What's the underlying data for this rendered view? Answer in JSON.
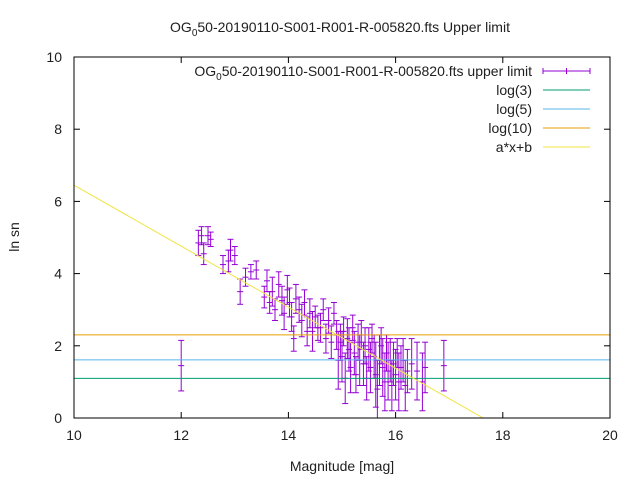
{
  "chart_data": {
    "type": "scatter",
    "title": "OG",
    "title_sub": "0",
    "title_rest": "50-20190110-S001-R001-R-005820.fts Upper limit",
    "xlabel": "Magnitude [mag]",
    "ylabel": "ln sn",
    "xlim": [
      10,
      20
    ],
    "ylim": [
      0,
      10
    ],
    "xticks": [
      10,
      12,
      14,
      16,
      18,
      20
    ],
    "yticks": [
      0,
      2,
      4,
      6,
      8,
      10
    ],
    "grid": false,
    "legend_position": "top-right",
    "series": [
      {
        "name": "OG",
        "name_sub": "0",
        "name_rest": "50-20190110-S001-R001-R-005820.fts upper limit",
        "kind": "errorbars",
        "color": "#9400d3",
        "points": [
          [
            12.0,
            1.45,
            0.7
          ],
          [
            12.32,
            4.85,
            0.35
          ],
          [
            12.38,
            5.05,
            0.25
          ],
          [
            12.42,
            4.55,
            0.3
          ],
          [
            12.5,
            5.05,
            0.25
          ],
          [
            12.55,
            4.95,
            0.2
          ],
          [
            12.78,
            4.25,
            0.25
          ],
          [
            12.88,
            4.35,
            0.3
          ],
          [
            12.92,
            4.65,
            0.3
          ],
          [
            13.0,
            4.5,
            0.25
          ],
          [
            13.1,
            3.5,
            0.35
          ],
          [
            13.2,
            3.9,
            0.25
          ],
          [
            13.3,
            4.05,
            0.2
          ],
          [
            13.4,
            4.1,
            0.25
          ],
          [
            13.55,
            3.35,
            0.3
          ],
          [
            13.6,
            3.8,
            0.3
          ],
          [
            13.65,
            3.2,
            0.3
          ],
          [
            13.7,
            3.5,
            0.4
          ],
          [
            13.75,
            3.0,
            0.3
          ],
          [
            13.82,
            3.7,
            0.35
          ],
          [
            13.88,
            3.25,
            0.4
          ],
          [
            13.92,
            2.9,
            0.45
          ],
          [
            13.98,
            3.55,
            0.4
          ],
          [
            14.02,
            3.2,
            0.4
          ],
          [
            14.06,
            2.8,
            0.4
          ],
          [
            14.1,
            2.2,
            0.35
          ],
          [
            14.14,
            3.3,
            0.4
          ],
          [
            14.2,
            3.0,
            0.35
          ],
          [
            14.25,
            2.7,
            0.45
          ],
          [
            14.3,
            3.2,
            0.35
          ],
          [
            14.35,
            2.4,
            0.4
          ],
          [
            14.4,
            2.9,
            0.4
          ],
          [
            14.45,
            2.4,
            0.55
          ],
          [
            14.5,
            2.8,
            0.3
          ],
          [
            14.55,
            2.5,
            0.35
          ],
          [
            14.6,
            2.5,
            0.4
          ],
          [
            14.65,
            3.0,
            0.3
          ],
          [
            14.7,
            2.2,
            0.4
          ],
          [
            14.75,
            2.7,
            0.35
          ],
          [
            14.8,
            2.1,
            0.45
          ],
          [
            14.85,
            2.9,
            0.3
          ],
          [
            14.9,
            2.3,
            0.4
          ],
          [
            14.93,
            1.6,
            0.8
          ],
          [
            14.97,
            2.1,
            0.5
          ],
          [
            15.0,
            1.7,
            0.7
          ],
          [
            15.03,
            2.4,
            0.4
          ],
          [
            15.06,
            1.1,
            0.7
          ],
          [
            15.1,
            2.2,
            0.55
          ],
          [
            15.13,
            1.9,
            0.6
          ],
          [
            15.16,
            1.4,
            0.7
          ],
          [
            15.2,
            2.5,
            0.35
          ],
          [
            15.23,
            1.8,
            0.6
          ],
          [
            15.26,
            1.2,
            0.5
          ],
          [
            15.3,
            2.1,
            0.5
          ],
          [
            15.33,
            1.6,
            0.7
          ],
          [
            15.36,
            2.3,
            0.4
          ],
          [
            15.4,
            1.5,
            0.6
          ],
          [
            15.43,
            2.0,
            0.5
          ],
          [
            15.46,
            1.1,
            0.6
          ],
          [
            15.5,
            1.9,
            0.6
          ],
          [
            15.53,
            1.4,
            0.7
          ],
          [
            15.56,
            2.2,
            0.4
          ],
          [
            15.6,
            1.7,
            0.6
          ],
          [
            15.63,
            1.2,
            0.9
          ],
          [
            15.66,
            0.8,
            0.8
          ],
          [
            15.7,
            1.6,
            0.7
          ],
          [
            15.73,
            2.0,
            0.5
          ],
          [
            15.76,
            1.4,
            0.8
          ],
          [
            15.8,
            1.0,
            0.8
          ],
          [
            15.83,
            1.8,
            0.5
          ],
          [
            15.86,
            1.3,
            0.8
          ],
          [
            15.9,
            1.6,
            0.6
          ],
          [
            15.93,
            0.9,
            0.7
          ],
          [
            15.96,
            1.5,
            0.6
          ],
          [
            16.0,
            1.2,
            0.7
          ],
          [
            16.03,
            1.8,
            0.4
          ],
          [
            16.06,
            1.0,
            0.8
          ],
          [
            16.1,
            1.4,
            0.6
          ],
          [
            16.14,
            1.6,
            0.6
          ],
          [
            16.18,
            0.9,
            0.7
          ],
          [
            16.22,
            1.3,
            0.6
          ],
          [
            16.3,
            1.5,
            0.7
          ],
          [
            16.4,
            1.3,
            0.8
          ],
          [
            16.5,
            1.0,
            0.8
          ],
          [
            16.55,
            1.4,
            0.7
          ],
          [
            16.9,
            1.45,
            0.7
          ]
        ]
      },
      {
        "name": "log(3)",
        "kind": "hline",
        "y": 1.0986,
        "color": "#009e73"
      },
      {
        "name": "log(5)",
        "kind": "hline",
        "y": 1.6094,
        "color": "#56b4e9"
      },
      {
        "name": "log(10)",
        "kind": "hline",
        "y": 2.3026,
        "color": "#e69f00"
      },
      {
        "name": "a*x+b",
        "kind": "fit_line",
        "slope": -0.845,
        "intercept": 14.9,
        "color": "#f0e442"
      }
    ]
  }
}
